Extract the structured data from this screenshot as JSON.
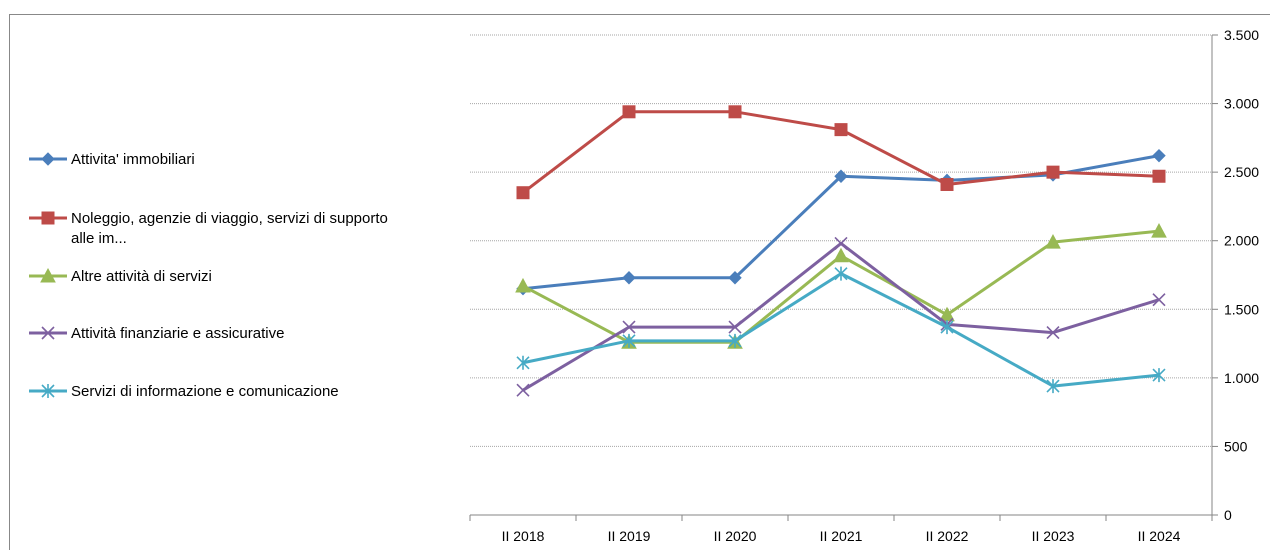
{
  "chart_data": {
    "type": "line",
    "categories": [
      "II 2018",
      "II 2019",
      "II 2020",
      "II 2021",
      "II 2022",
      "II 2023",
      "II 2024"
    ],
    "ylim": [
      0,
      3500
    ],
    "y_ticks": [
      0,
      500,
      1000,
      1500,
      2000,
      2500,
      3000,
      3500
    ],
    "y_tick_labels": [
      "0",
      "500",
      "1.000",
      "1.500",
      "2.000",
      "2.500",
      "3.000",
      "3.500"
    ],
    "y_axis_side": "right",
    "grid": true,
    "legend_position": "left",
    "series": [
      {
        "name": "Attivita' immobiliari",
        "name_lines": [
          "Attivita' immobiliari"
        ],
        "color": "#4a7ebb",
        "marker": "diamond",
        "values": [
          1650,
          1730,
          1730,
          2470,
          2440,
          2480,
          2620
        ]
      },
      {
        "name": "Noleggio, agenzie di viaggio, servizi di supporto alle im...",
        "name_lines": [
          "Noleggio, agenzie di viaggio, servizi di supporto",
          "alle im..."
        ],
        "color": "#be4b48",
        "marker": "square",
        "values": [
          2350,
          2940,
          2940,
          2810,
          2410,
          2500,
          2470
        ]
      },
      {
        "name": "Altre attività di servizi",
        "name_lines": [
          "Altre attività di servizi"
        ],
        "color": "#98b954",
        "marker": "triangle",
        "values": [
          1670,
          1260,
          1260,
          1890,
          1460,
          1990,
          2070
        ]
      },
      {
        "name": "Attività finanziarie e assicurative",
        "name_lines": [
          "Attività finanziarie e assicurative"
        ],
        "color": "#7d60a0",
        "marker": "x",
        "values": [
          910,
          1370,
          1370,
          1980,
          1390,
          1330,
          1570
        ]
      },
      {
        "name": "Servizi di informazione e comunicazione",
        "name_lines": [
          "Servizi di informazione e comunicazione"
        ],
        "color": "#46aac5",
        "marker": "star",
        "values": [
          1110,
          1270,
          1270,
          1760,
          1370,
          940,
          1020
        ]
      }
    ]
  }
}
